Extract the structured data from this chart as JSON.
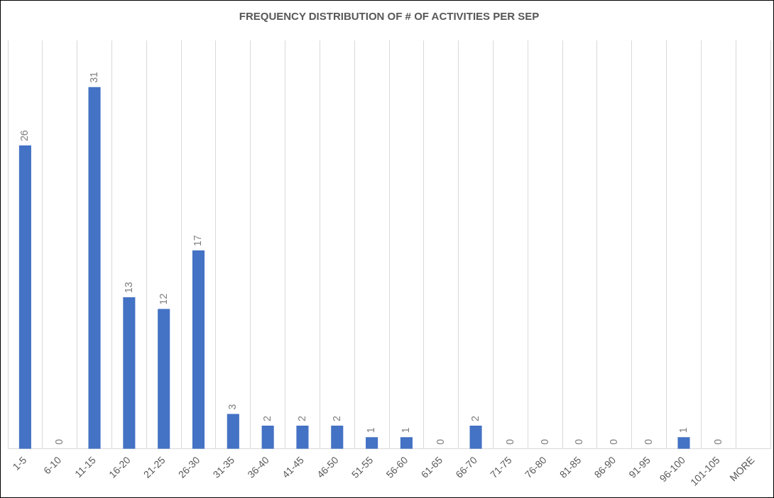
{
  "chart_data": {
    "type": "bar",
    "title": "FREQUENCY DISTRIBUTION OF # OF ACTIVITIES PER SEP",
    "categories": [
      "1-5",
      "6-10",
      "11-15",
      "16-20",
      "21-25",
      "26-30",
      "31-35",
      "36-40",
      "41-45",
      "46-50",
      "51-55",
      "56-60",
      "61-65",
      "66-70",
      "71-75",
      "76-80",
      "81-85",
      "86-90",
      "91-95",
      "96-100",
      "101-105",
      "MORE"
    ],
    "values": [
      26,
      0,
      31,
      13,
      12,
      17,
      3,
      2,
      2,
      2,
      1,
      1,
      0,
      2,
      0,
      0,
      0,
      0,
      0,
      1,
      0,
      null
    ],
    "color": "#4472c4",
    "data_labels": true,
    "grid": "x",
    "tick_labels": "x"
  }
}
